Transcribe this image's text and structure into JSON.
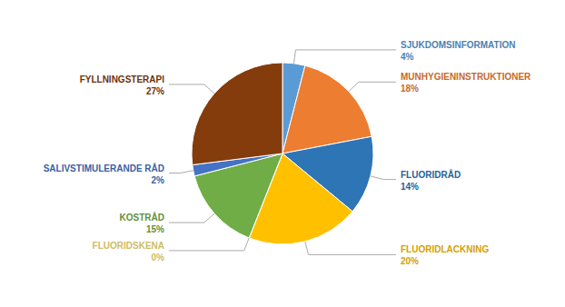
{
  "chart_data": {
    "type": "pie",
    "categories": [
      "SJUKDOMSINFORMATION",
      "MUNHYGIENINSTRUKTIONER",
      "FLUORIDRÅD",
      "FLUORIDLACKNING",
      "FLUORIDSKENA",
      "KOSTRÅD",
      "SALIVSTIMULERANDE RÅD",
      "FYLLNINGSTERAPI"
    ],
    "values": [
      4,
      18,
      14,
      20,
      0,
      15,
      2,
      27
    ],
    "value_labels": [
      "4%",
      "18%",
      "14%",
      "20%",
      "0%",
      "15%",
      "2%",
      "27%"
    ],
    "colors": [
      "#5B9BD5",
      "#ED7D31",
      "#2E75B6",
      "#FFC000",
      "#F5E17A",
      "#70AD47",
      "#4472C4",
      "#843C0C"
    ],
    "data_labels": true
  }
}
